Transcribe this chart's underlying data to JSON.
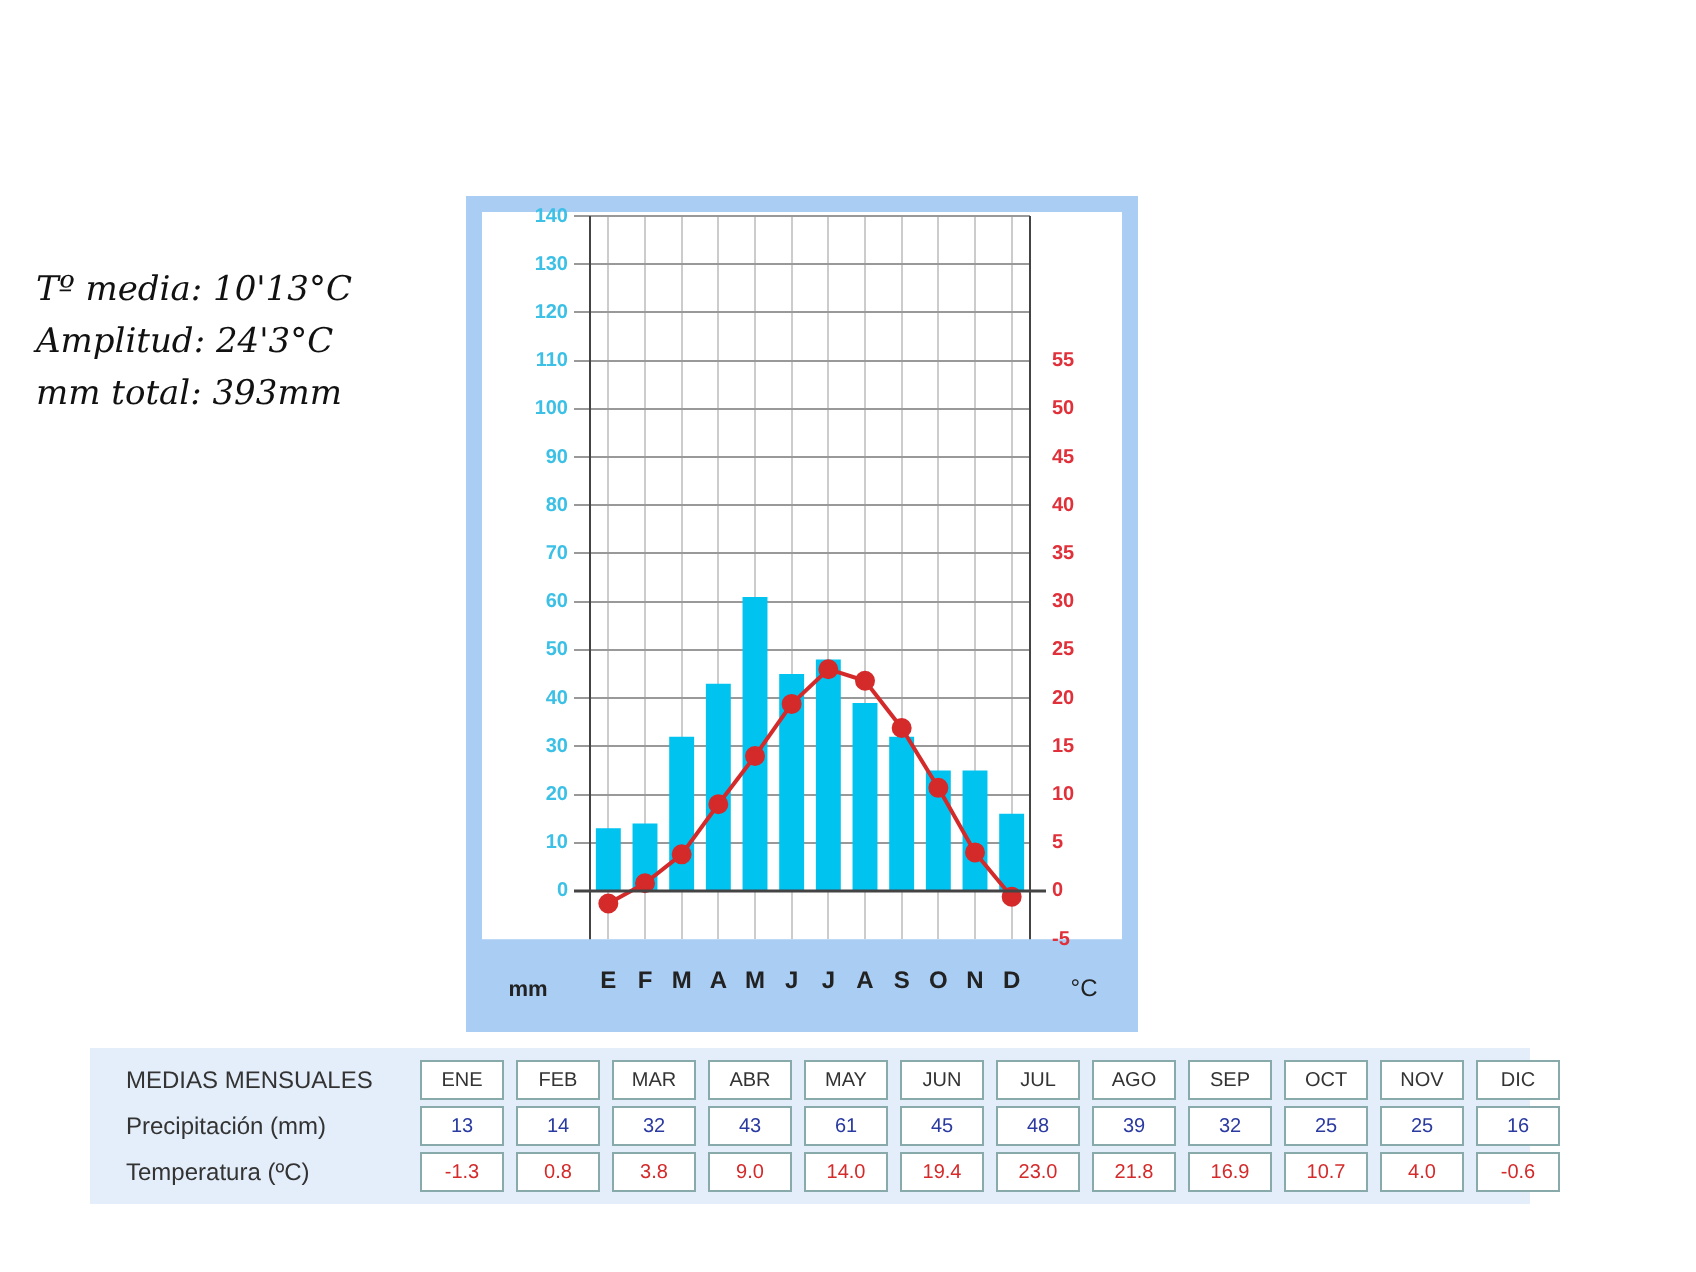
{
  "chart_data": [
    {
      "type": "bar",
      "categories": [
        "E",
        "F",
        "M",
        "A",
        "M",
        "J",
        "J",
        "A",
        "S",
        "O",
        "N",
        "D"
      ],
      "series": [
        {
          "color": "#00c3f0",
          "values": [
            13,
            14,
            32,
            43,
            61,
            45,
            48,
            39,
            32,
            25,
            25,
            16
          ]
        },
        {
          "type": "line",
          "axis": "y2",
          "color": "#d42a2a",
          "values": [
            -1.3,
            0.8,
            3.8,
            9.0,
            14.0,
            19.4,
            23.0,
            21.8,
            16.9,
            10.7,
            4.0,
            -0.6
          ]
        }
      ],
      "ylabel": "mm",
      "y2label": "°C",
      "ylim": [
        -10,
        140
      ],
      "yticks": [
        0,
        10,
        20,
        30,
        40,
        50,
        60,
        70,
        80,
        90,
        100,
        110,
        120,
        130,
        140
      ],
      "y2lim": [
        -5,
        70
      ],
      "y2ticks": [
        -5,
        0,
        5,
        10,
        15,
        20,
        25,
        30,
        35,
        40,
        45,
        50,
        55
      ],
      "grid": true,
      "marker": "circle",
      "line_style": "solid",
      "annotations": [
        "Tº media: 10'13°C",
        "Amplitud: 24'3°C",
        "mm total: 393mm"
      ]
    },
    {
      "type": "other",
      "title": "MEDIAS MENSUALES",
      "categories": [
        "ENE",
        "FEB",
        "MAR",
        "ABR",
        "MAY",
        "JUN",
        "JUL",
        "AGO",
        "SEP",
        "OCT",
        "NOV",
        "DIC"
      ],
      "y_categories": [
        "Precipitación (mm)",
        "Temperatura (ºC)"
      ],
      "series": [
        {
          "values": [
            13,
            14,
            32,
            43,
            61,
            45,
            48,
            39,
            32,
            25,
            25,
            16
          ],
          "value_labels": [
            "13",
            "14",
            "32",
            "43",
            "61",
            "45",
            "48",
            "39",
            "32",
            "25",
            "25",
            "16"
          ]
        },
        {
          "values": [
            -1.3,
            0.8,
            3.8,
            9.0,
            14.0,
            19.4,
            23.0,
            21.8,
            16.9,
            10.7,
            4.0,
            -0.6
          ],
          "value_labels": [
            "-1.3",
            "0.8",
            "3.8",
            "9.0",
            "14.0",
            "19.4",
            "23.0",
            "21.8",
            "16.9",
            "10.7",
            "4.0",
            "-0.6"
          ]
        }
      ]
    }
  ]
}
